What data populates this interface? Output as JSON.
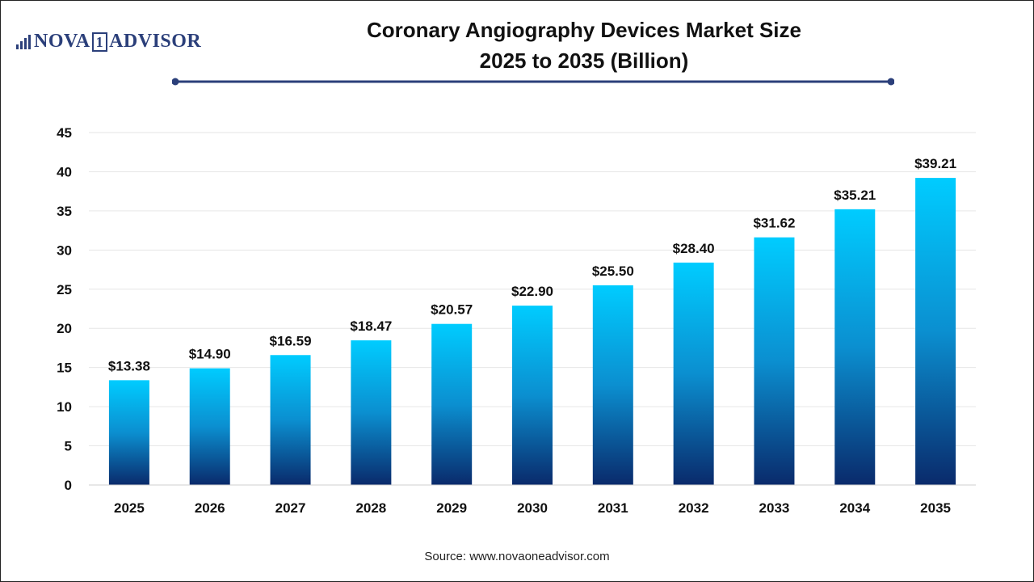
{
  "brand": {
    "logo_left": "NOVA",
    "logo_box": "1",
    "logo_right": "ADVISOR"
  },
  "title_line1": "Coronary Angiography Devices Market Size",
  "title_line2": "2025 to 2035 (Billion)",
  "source": "Source: www.novaoneadvisor.com",
  "colors": {
    "bar_top": "#00ccff",
    "bar_bottom": "#0a2a6b",
    "rule": "#2b3f7a",
    "grid": "#e6e6e6"
  },
  "chart_data": {
    "type": "bar",
    "title": "Coronary Angiography Devices Market Size 2025 to 2035 (Billion)",
    "categories": [
      "2025",
      "2026",
      "2027",
      "2028",
      "2029",
      "2030",
      "2031",
      "2032",
      "2033",
      "2034",
      "2035"
    ],
    "values": [
      13.38,
      14.9,
      16.59,
      18.47,
      20.57,
      22.9,
      25.5,
      28.4,
      31.62,
      35.21,
      39.21
    ],
    "data_labels": [
      "$13.38",
      "$14.90",
      "$16.59",
      "$18.47",
      "$20.57",
      "$22.90",
      "$25.50",
      "$28.40",
      "$31.62",
      "$35.21",
      "$39.21"
    ],
    "yticks": [
      0,
      5,
      10,
      15,
      20,
      25,
      30,
      35,
      40,
      45
    ],
    "ylim": [
      0,
      45
    ],
    "xlabel": "",
    "ylabel": "",
    "grid": true,
    "legend": "none"
  }
}
